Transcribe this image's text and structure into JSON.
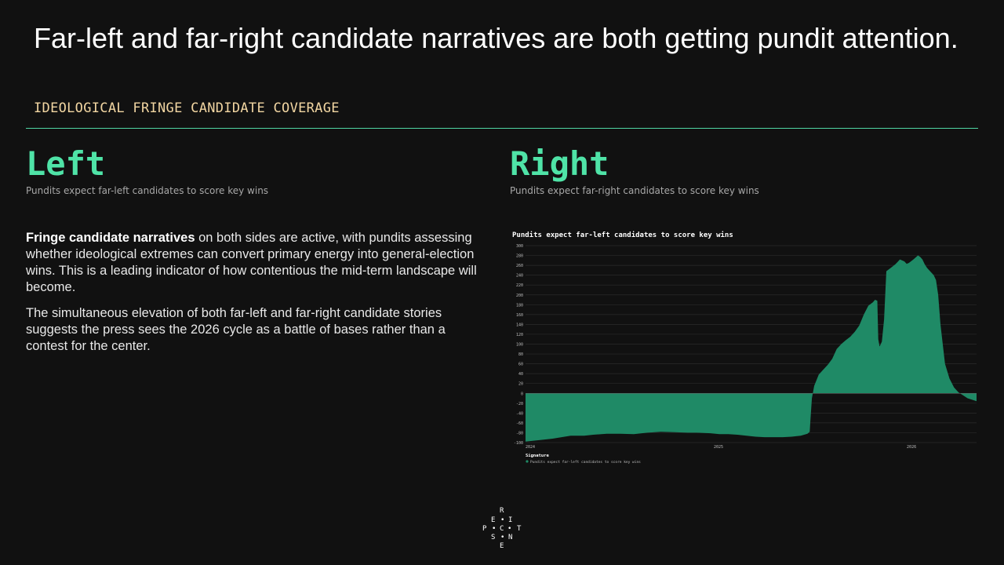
{
  "header": {
    "title": "Far-left and far-right candidate narratives are both getting pundit attention.",
    "subtitle": "IDEOLOGICAL FRINGE CANDIDATE COVERAGE"
  },
  "left": {
    "heading": "Left",
    "sub": "Pundits expect far-left candidates to score key wins"
  },
  "right": {
    "heading": "Right",
    "sub": "Pundits expect far-right candidates to score key wins"
  },
  "body": {
    "p1_bold": "Fringe candidate narratives",
    "p1_rest": " on both sides are active, with pundits assessing whether ideological extremes can convert primary energy into general-election wins. This is a leading indicator of how contentious the mid-term landscape will become.",
    "p2": "The simultaneous elevation of both far-left and far-right candidate stories suggests the press sees the 2026 cycle as a battle of bases rather than a contest for the center."
  },
  "colors": {
    "background": "#111111",
    "accent": "#4fe3a7",
    "rule": "#4fd6a4",
    "subtitle": "#f2d6a2",
    "area_fill": "#1f8a66"
  },
  "chart_data": {
    "type": "area",
    "title": "Pundits expect far-left candidates to score key wins",
    "legend_title": "Signature",
    "legend_position": "bottom-left",
    "grid": true,
    "ylim": [
      -100,
      300
    ],
    "yticks": [
      300,
      280,
      260,
      240,
      220,
      200,
      180,
      160,
      140,
      120,
      100,
      80,
      60,
      40,
      20,
      0,
      -20,
      -40,
      -60,
      -80,
      -100
    ],
    "xticks": [
      {
        "x": 0,
        "label": "2024"
      },
      {
        "x": 0.426,
        "label": "2025"
      },
      {
        "x": 0.854,
        "label": "2026"
      }
    ],
    "series": [
      {
        "name": "Pundits expect far-left candidates to score key wins",
        "color": "#1f8a66",
        "x": [
          0,
          0.01,
          0.03,
          0.06,
          0.08,
          0.1,
          0.13,
          0.15,
          0.18,
          0.21,
          0.24,
          0.27,
          0.3,
          0.33,
          0.36,
          0.38,
          0.41,
          0.43,
          0.45,
          0.47,
          0.49,
          0.51,
          0.53,
          0.55,
          0.57,
          0.59,
          0.61,
          0.625,
          0.63,
          0.632,
          0.635,
          0.64,
          0.65,
          0.66,
          0.67,
          0.68,
          0.69,
          0.7,
          0.71,
          0.72,
          0.73,
          0.74,
          0.75,
          0.76,
          0.77,
          0.775,
          0.78,
          0.782,
          0.785,
          0.79,
          0.795,
          0.8,
          0.81,
          0.82,
          0.83,
          0.84,
          0.845,
          0.85,
          0.86,
          0.87,
          0.875,
          0.88,
          0.885,
          0.89,
          0.895,
          0.9,
          0.905,
          0.91,
          0.915,
          0.92,
          0.93,
          0.94,
          0.95,
          0.96,
          0.97,
          0.98,
          0.99,
          1.0
        ],
        "y": [
          -98,
          -97,
          -95,
          -92,
          -89,
          -86,
          -86,
          -84,
          -82,
          -82,
          -83,
          -80,
          -78,
          -79,
          -80,
          -80,
          -81,
          -83,
          -83,
          -84,
          -86,
          -88,
          -89,
          -89,
          -89,
          -88,
          -86,
          -82,
          -78,
          -50,
          -10,
          15,
          38,
          48,
          58,
          70,
          90,
          100,
          108,
          115,
          125,
          138,
          160,
          178,
          185,
          190,
          188,
          110,
          95,
          105,
          150,
          248,
          255,
          262,
          272,
          268,
          263,
          265,
          272,
          280,
          277,
          272,
          262,
          255,
          250,
          245,
          240,
          230,
          200,
          140,
          60,
          30,
          12,
          2,
          -4,
          -10,
          -13,
          -16
        ]
      }
    ]
  },
  "logo": {
    "letters": [
      "R",
      "E",
      "I",
      "P",
      "C",
      "T",
      "S",
      "N",
      "E"
    ]
  }
}
